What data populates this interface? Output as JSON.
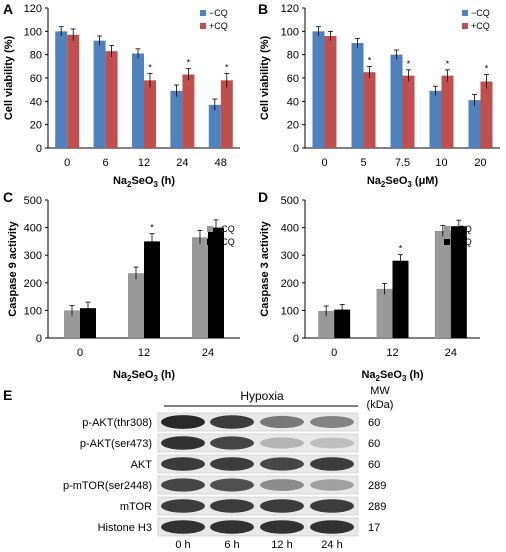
{
  "panels": {
    "A": {
      "letter": "A"
    },
    "B": {
      "letter": "B"
    },
    "C": {
      "letter": "C"
    },
    "D": {
      "letter": "D"
    },
    "E": {
      "letter": "E"
    }
  },
  "chart_data": [
    {
      "id": "A",
      "type": "bar",
      "categories": [
        "0",
        "6",
        "12",
        "24",
        "48"
      ],
      "series": [
        {
          "name": "−CQ",
          "color": "#4f81bd",
          "values": [
            100,
            92,
            81,
            49,
            37
          ],
          "errors": [
            4,
            4,
            4,
            5,
            5
          ],
          "stars": [
            false,
            false,
            false,
            false,
            false
          ]
        },
        {
          "name": "+CQ",
          "color": "#c0504d",
          "values": [
            97,
            83,
            58,
            63,
            58
          ],
          "errors": [
            5,
            5,
            6,
            5,
            6
          ],
          "stars": [
            false,
            false,
            true,
            true,
            true
          ]
        }
      ],
      "xlabel_main": "Na",
      "xlabel_sub1": "2",
      "xlabel_mid": "SeO",
      "xlabel_sub2": "3",
      "xlabel_tail": " (h)",
      "ylabel": "Cell viability (%)",
      "ylim": [
        0,
        120
      ],
      "yticks": [
        "0",
        "20",
        "40",
        "60",
        "80",
        "100",
        "120"
      ],
      "grid": false,
      "legend": "top-right"
    },
    {
      "id": "B",
      "type": "bar",
      "categories": [
        "0",
        "5",
        "7.5",
        "10",
        "20"
      ],
      "series": [
        {
          "name": "−CQ",
          "color": "#4f81bd",
          "values": [
            100,
            90,
            80,
            49,
            41
          ],
          "errors": [
            4,
            4,
            4,
            4,
            5
          ],
          "stars": [
            false,
            false,
            false,
            false,
            false
          ]
        },
        {
          "name": "+CQ",
          "color": "#c0504d",
          "values": [
            96,
            65,
            62,
            62,
            57
          ],
          "errors": [
            4,
            5,
            5,
            5,
            6
          ],
          "stars": [
            false,
            true,
            true,
            true,
            true
          ]
        }
      ],
      "xlabel_main": "Na",
      "xlabel_sub1": "2",
      "xlabel_mid": "SeO",
      "xlabel_sub2": "3",
      "xlabel_tail": " (μM)",
      "ylabel": "Cell viability (%)",
      "ylim": [
        0,
        120
      ],
      "yticks": [
        "0",
        "20",
        "40",
        "60",
        "80",
        "100",
        "120"
      ],
      "grid": false,
      "legend": "top-right"
    },
    {
      "id": "C",
      "type": "bar",
      "categories": [
        "0",
        "12",
        "24"
      ],
      "series": [
        {
          "name": "−CQ",
          "color": "#999999",
          "values": [
            100,
            235,
            365
          ],
          "errors": [
            18,
            22,
            25
          ],
          "stars": [
            false,
            false,
            false
          ]
        },
        {
          "name": "+CQ",
          "color": "#000000",
          "values": [
            108,
            350,
            400
          ],
          "errors": [
            22,
            28,
            28
          ],
          "stars": [
            false,
            true,
            false
          ]
        }
      ],
      "xlabel_main": "Na",
      "xlabel_sub1": "2",
      "xlabel_mid": "SeO",
      "xlabel_sub2": "3",
      "xlabel_tail": " (h)",
      "ylabel": "Caspase 9 activity",
      "ylim": [
        0,
        500
      ],
      "yticks": [
        "0",
        "100",
        "200",
        "300",
        "400",
        "500"
      ],
      "grid": false,
      "legend": "top-right"
    },
    {
      "id": "D",
      "type": "bar",
      "categories": [
        "0",
        "12",
        "24"
      ],
      "series": [
        {
          "name": "−CQ",
          "color": "#999999",
          "values": [
            98,
            178,
            388
          ],
          "errors": [
            18,
            20,
            20
          ],
          "stars": [
            false,
            false,
            false
          ]
        },
        {
          "name": "+CQ",
          "color": "#000000",
          "values": [
            103,
            280,
            405
          ],
          "errors": [
            18,
            22,
            22
          ],
          "stars": [
            false,
            true,
            false
          ]
        }
      ],
      "xlabel_main": "Na",
      "xlabel_sub1": "2",
      "xlabel_mid": "SeO",
      "xlabel_sub2": "3",
      "xlabel_tail": " (h)",
      "ylabel": "Caspase 3 activity",
      "ylim": [
        0,
        500
      ],
      "yticks": [
        "0",
        "100",
        "200",
        "300",
        "400",
        "500"
      ],
      "grid": false,
      "legend": "top-right"
    }
  ],
  "blot": {
    "header": "Hypoxia",
    "mw_header_1": "MW",
    "mw_header_2": "(kDa)",
    "lanes": [
      "0 h",
      "6 h",
      "12 h",
      "24 h"
    ],
    "rows": [
      {
        "label": "p-AKT(thr308)",
        "mw": "60",
        "intensity": [
          0.95,
          0.85,
          0.55,
          0.5
        ]
      },
      {
        "label": "p-AKT(ser473)",
        "mw": "60",
        "intensity": [
          0.9,
          0.8,
          0.25,
          0.2
        ]
      },
      {
        "label": "AKT",
        "mw": "60",
        "intensity": [
          0.85,
          0.85,
          0.8,
          0.85
        ]
      },
      {
        "label": "p-mTOR(ser2448)",
        "mw": "289",
        "intensity": [
          0.8,
          0.75,
          0.45,
          0.35
        ]
      },
      {
        "label": "mTOR",
        "mw": "289",
        "intensity": [
          0.85,
          0.85,
          0.85,
          0.85
        ]
      },
      {
        "label": "Histone H3",
        "mw": "17",
        "intensity": [
          0.9,
          0.9,
          0.9,
          0.9
        ]
      }
    ]
  },
  "star_symbol": "*"
}
